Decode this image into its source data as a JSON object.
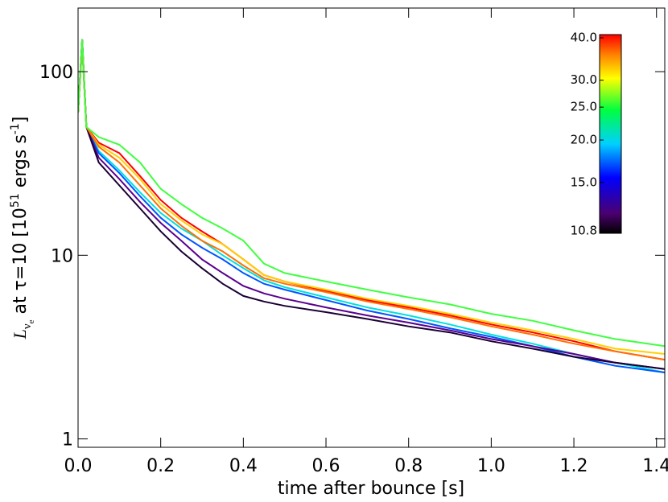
{
  "chart_data": {
    "type": "line",
    "ylabel": {
      "main": "L",
      "sub1": "ν",
      "sub2": "e",
      "mid": " at τ=10  [10",
      "sup1": "51",
      "mid2": " ergs s",
      "sup2": "-1",
      "end": "]"
    },
    "xlabel": "time after bounce [s]",
    "x": [
      0,
      0.01,
      0.02,
      0.05,
      0.1,
      0.15,
      0.2,
      0.25,
      0.3,
      0.35,
      0.4,
      0.45,
      0.5,
      0.6,
      0.7,
      0.8,
      0.9,
      1.0,
      1.1,
      1.2,
      1.3,
      1.42
    ],
    "series": [
      {
        "color": "#ff0000",
        "values": [
          60,
          150,
          50,
          41,
          36,
          27,
          20,
          16,
          13.5,
          11.5,
          9.5,
          7.8,
          7.2,
          6.4,
          5.7,
          5.2,
          4.7,
          4.2,
          3.8,
          3.4,
          3.0,
          2.7
        ]
      },
      {
        "color": "#00e0e0",
        "values": [
          60,
          140,
          50,
          37,
          29,
          22,
          17,
          14,
          12,
          10,
          8.5,
          7.3,
          6.7,
          5.9,
          5.2,
          4.7,
          4.2,
          3.7,
          3.3,
          2.9,
          2.6,
          2.3
        ]
      },
      {
        "color": "#0055ff",
        "values": [
          60,
          140,
          50,
          36,
          28,
          21,
          16,
          13,
          11,
          9.5,
          8,
          7,
          6.5,
          5.7,
          5.0,
          4.5,
          4.0,
          3.6,
          3.2,
          2.8,
          2.5,
          2.3
        ]
      },
      {
        "color": "#5a0090",
        "values": [
          60,
          145,
          50,
          34,
          26,
          19.5,
          15,
          12,
          9.5,
          8,
          6.8,
          6.2,
          5.8,
          5.2,
          4.7,
          4.3,
          3.9,
          3.5,
          3.2,
          2.9,
          2.6,
          2.4
        ]
      },
      {
        "color": "#1a0033",
        "values": [
          60,
          150,
          50,
          32,
          24,
          18,
          13.5,
          10.5,
          8.5,
          7,
          6,
          5.6,
          5.3,
          4.9,
          4.5,
          4.1,
          3.8,
          3.4,
          3.1,
          2.8,
          2.6,
          2.4
        ]
      },
      {
        "color": "#ffd000",
        "values": [
          60,
          140,
          50,
          40,
          34,
          26,
          19,
          15.5,
          13,
          11.5,
          9.5,
          7.8,
          7.2,
          6.5,
          5.8,
          5.3,
          4.8,
          4.3,
          3.9,
          3.5,
          3.1,
          2.9
        ]
      },
      {
        "color": "#ff7000",
        "values": [
          60,
          145,
          50,
          39,
          32,
          24,
          18,
          14.5,
          12,
          10.5,
          8.8,
          7.5,
          7,
          6.3,
          5.6,
          5.1,
          4.6,
          4.1,
          3.7,
          3.3,
          3,
          2.7
        ]
      },
      {
        "color": "#40ff40",
        "values": [
          60,
          150,
          50,
          44,
          40,
          32,
          23,
          19,
          16,
          14,
          12,
          9,
          8,
          7.2,
          6.5,
          5.9,
          5.4,
          4.8,
          4.4,
          3.9,
          3.5,
          3.2
        ]
      }
    ],
    "xlim": [
      0,
      1.42
    ],
    "xticks": [
      {
        "value": 0,
        "label": "0.0"
      },
      0.2,
      0.4,
      0.6,
      0.8,
      {
        "value": 1,
        "label": "1.0"
      },
      1.2,
      1.4
    ],
    "ylim": [
      0.9,
      222
    ],
    "ylog": true,
    "yticks": [
      1,
      10,
      100
    ],
    "colorbar": {
      "lim": [
        10.8,
        40
      ],
      "log": true,
      "ticks": [
        {
          "value": 40,
          "label": "40.0"
        },
        {
          "value": 30,
          "label": "30.0"
        },
        {
          "value": 25,
          "label": "25.0"
        },
        {
          "value": 20,
          "label": "20.0"
        },
        {
          "value": 15,
          "label": "15.0"
        },
        10.8
      ]
    }
  }
}
